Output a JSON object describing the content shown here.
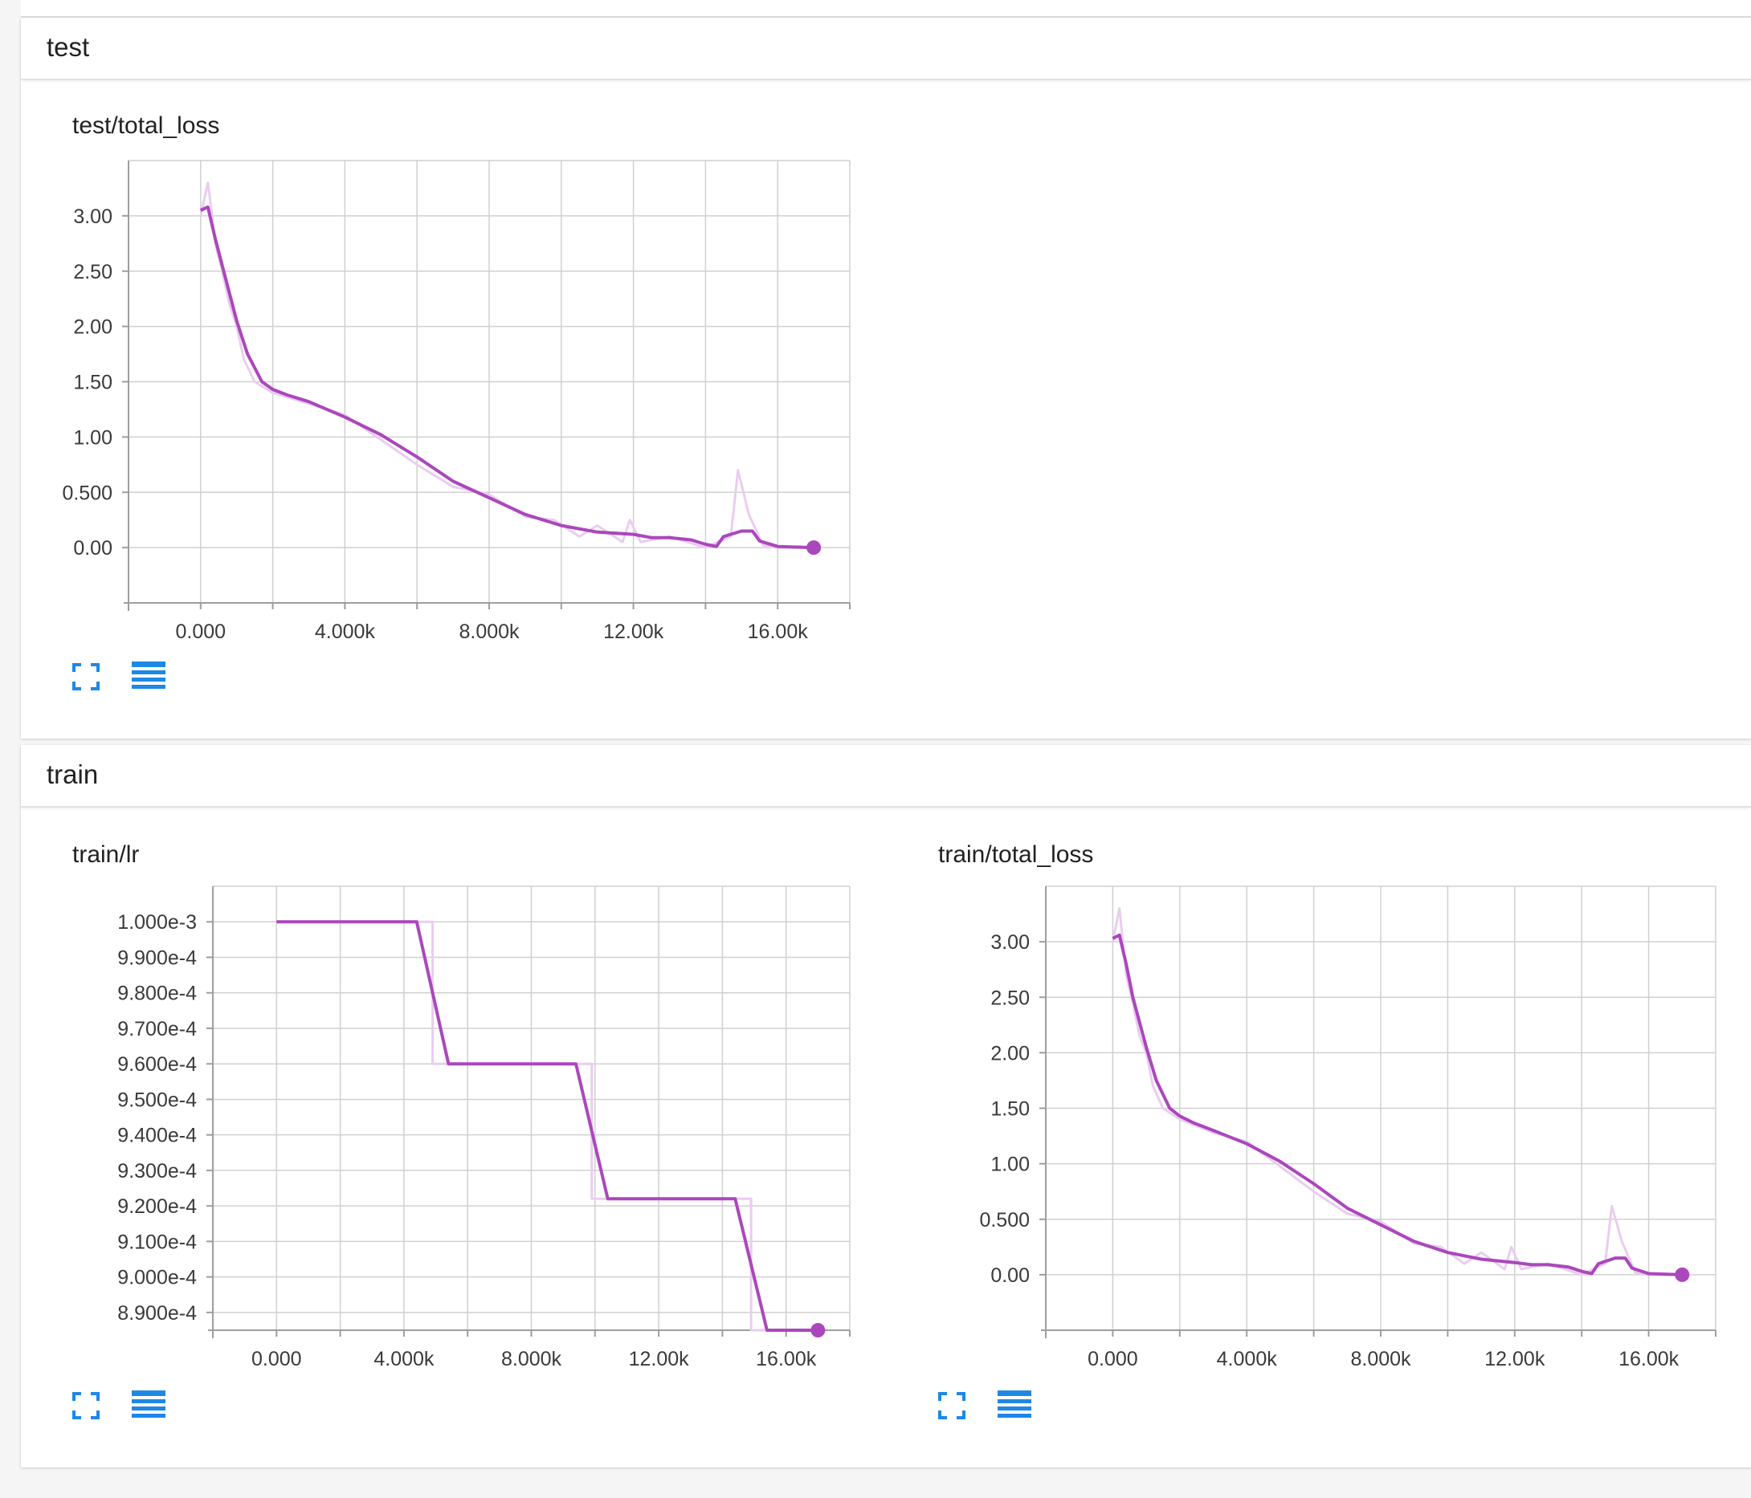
{
  "sections": [
    {
      "title": "test"
    },
    {
      "title": "train"
    }
  ],
  "palette": {
    "line": "#ab47bc",
    "raw": "#e9cdef",
    "grid": "#d0d0d0",
    "icon": "#1e88e5"
  },
  "icons": {
    "fit": "fit-to-domain-icon",
    "table": "data-table-icon"
  },
  "chart_data": [
    {
      "id": "test_loss",
      "type": "line",
      "title": "test/total_loss",
      "x_tick_labels": [
        "0.000",
        "4.000k",
        "8.000k",
        "12.00k",
        "16.00k"
      ],
      "y_tick_labels": [
        "3.00",
        "2.50",
        "2.00",
        "1.50",
        "1.00",
        "0.500",
        "0.00"
      ],
      "xlim": [
        -2000,
        18000
      ],
      "ylim": [
        -0.5,
        3.5
      ],
      "x_ticks": [
        0,
        4000,
        8000,
        12000,
        16000
      ],
      "y_ticks": [
        3.0,
        2.5,
        2.0,
        1.5,
        1.0,
        0.5,
        0.0
      ],
      "grid": true,
      "series": [
        {
          "role": "smoothed",
          "x": [
            0,
            200,
            400,
            600,
            1000,
            1300,
            1700,
            2000,
            2400,
            3000,
            4000,
            5000,
            6000,
            7000,
            8000,
            9000,
            10000,
            11000,
            12000,
            12500,
            13000,
            13600,
            14000,
            14300,
            14500,
            15000,
            15300,
            15500,
            16000,
            17000
          ],
          "y": [
            3.05,
            3.08,
            2.8,
            2.55,
            2.05,
            1.75,
            1.5,
            1.43,
            1.38,
            1.32,
            1.18,
            1.02,
            0.82,
            0.6,
            0.45,
            0.3,
            0.2,
            0.14,
            0.12,
            0.09,
            0.09,
            0.07,
            0.03,
            0.01,
            0.1,
            0.15,
            0.15,
            0.06,
            0.01,
            0.0
          ]
        },
        {
          "role": "raw",
          "x": [
            0,
            200,
            300,
            400,
            600,
            800,
            1000,
            1200,
            1500,
            2000,
            3000,
            4000,
            6000,
            7000,
            8000,
            9000,
            9800,
            10500,
            11000,
            11700,
            11900,
            12200,
            13000,
            14000,
            14200,
            14700,
            14900,
            15200,
            15600,
            16000,
            17000
          ],
          "y": [
            3.0,
            3.3,
            3.05,
            2.75,
            2.5,
            2.2,
            2.0,
            1.7,
            1.5,
            1.4,
            1.3,
            1.2,
            0.75,
            0.55,
            0.48,
            0.28,
            0.25,
            0.1,
            0.2,
            0.05,
            0.25,
            0.05,
            0.1,
            0.0,
            0.03,
            0.1,
            0.7,
            0.3,
            0.02,
            0.0,
            0.0
          ]
        }
      ]
    },
    {
      "id": "train_lr",
      "type": "line",
      "title": "train/lr",
      "x_tick_labels": [
        "0.000",
        "4.000k",
        "8.000k",
        "12.00k",
        "16.00k"
      ],
      "y_tick_labels": [
        "1.000e-3",
        "9.900e-4",
        "9.800e-4",
        "9.700e-4",
        "9.600e-4",
        "9.500e-4",
        "9.400e-4",
        "9.300e-4",
        "9.200e-4",
        "9.100e-4",
        "9.000e-4",
        "8.900e-4"
      ],
      "xlim": [
        -2000,
        18000
      ],
      "ylim": [
        0.000885,
        0.00101
      ],
      "x_ticks": [
        0,
        4000,
        8000,
        12000,
        16000
      ],
      "y_ticks": [
        0.001,
        0.00099,
        0.00098,
        0.00097,
        0.00096,
        0.00095,
        0.00094,
        0.00093,
        0.00092,
        0.00091,
        0.0009,
        0.00089
      ],
      "grid": true,
      "series": [
        {
          "role": "smoothed",
          "x": [
            0,
            4400,
            5400,
            9400,
            10400,
            14400,
            15400,
            17000
          ],
          "y": [
            0.001,
            0.001,
            0.00096,
            0.00096,
            0.000922,
            0.000922,
            0.000885,
            0.000885
          ]
        },
        {
          "role": "raw",
          "x": [
            0,
            4900,
            4900,
            9900,
            9900,
            14900,
            14900,
            17000
          ],
          "y": [
            0.001,
            0.001,
            0.00096,
            0.00096,
            0.000922,
            0.000922,
            0.000885,
            0.000885
          ]
        }
      ]
    },
    {
      "id": "train_loss",
      "type": "line",
      "title": "train/total_loss",
      "x_tick_labels": [
        "0.000",
        "4.000k",
        "8.000k",
        "12.00k",
        "16.00k"
      ],
      "y_tick_labels": [
        "3.00",
        "2.50",
        "2.00",
        "1.50",
        "1.00",
        "0.500",
        "0.00"
      ],
      "xlim": [
        -2000,
        18000
      ],
      "ylim": [
        -0.5,
        3.5
      ],
      "x_ticks": [
        0,
        4000,
        8000,
        12000,
        16000
      ],
      "y_ticks": [
        3.0,
        2.5,
        2.0,
        1.5,
        1.0,
        0.5,
        0.0
      ],
      "grid": true,
      "series": [
        {
          "role": "smoothed",
          "x": [
            0,
            200,
            400,
            600,
            1000,
            1300,
            1700,
            2000,
            2400,
            3000,
            4000,
            5000,
            6000,
            7000,
            8000,
            9000,
            10000,
            11000,
            12000,
            12500,
            13000,
            13600,
            14000,
            14300,
            14500,
            15000,
            15300,
            15500,
            16000,
            17000
          ],
          "y": [
            3.03,
            3.06,
            2.8,
            2.5,
            2.05,
            1.75,
            1.5,
            1.43,
            1.37,
            1.3,
            1.18,
            1.02,
            0.82,
            0.6,
            0.45,
            0.3,
            0.2,
            0.14,
            0.11,
            0.09,
            0.09,
            0.07,
            0.03,
            0.01,
            0.1,
            0.15,
            0.15,
            0.06,
            0.01,
            0.0
          ]
        },
        {
          "role": "raw",
          "x": [
            0,
            200,
            300,
            400,
            600,
            800,
            1000,
            1200,
            1500,
            2000,
            3000,
            4000,
            6000,
            7000,
            8000,
            9000,
            9800,
            10500,
            11000,
            11700,
            11900,
            12200,
            13000,
            14000,
            14200,
            14700,
            14900,
            15200,
            15600,
            16000,
            17000
          ],
          "y": [
            3.0,
            3.3,
            3.0,
            2.7,
            2.45,
            2.15,
            2.0,
            1.7,
            1.5,
            1.4,
            1.28,
            1.2,
            0.75,
            0.55,
            0.48,
            0.28,
            0.25,
            0.1,
            0.2,
            0.05,
            0.25,
            0.05,
            0.1,
            0.0,
            0.03,
            0.1,
            0.62,
            0.3,
            0.02,
            0.0,
            0.0
          ]
        }
      ]
    }
  ]
}
